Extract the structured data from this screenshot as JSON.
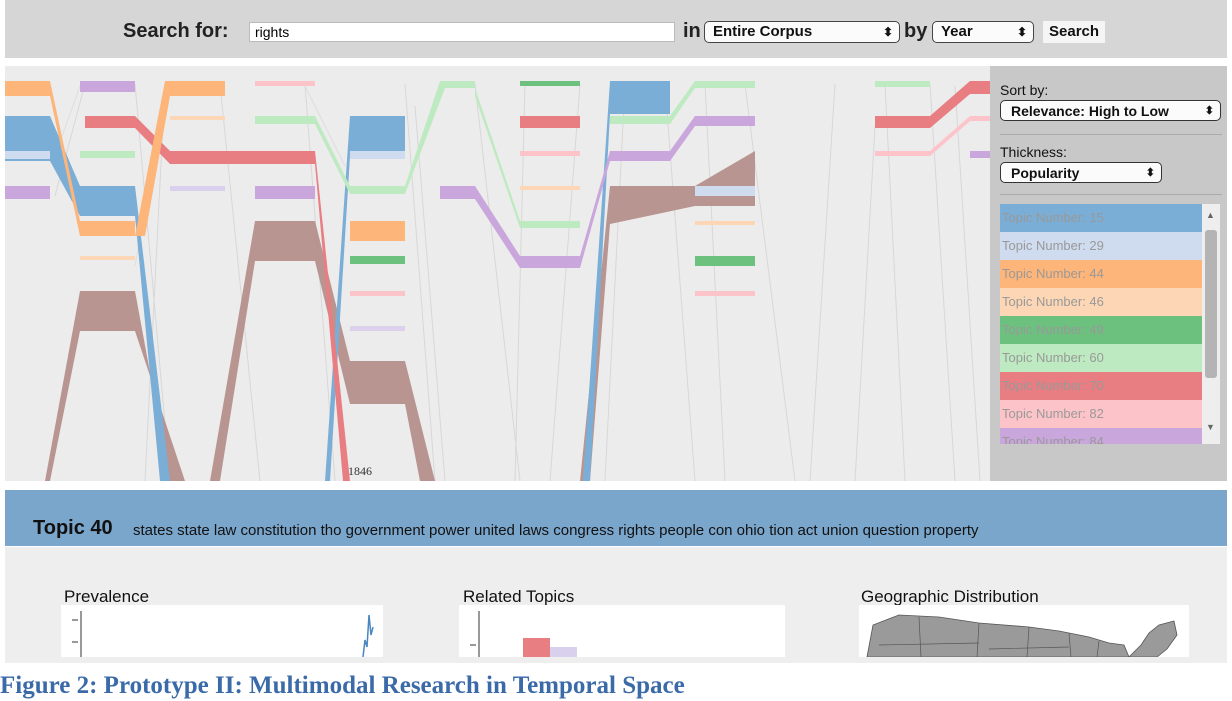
{
  "search": {
    "label": "Search for:",
    "value": "rights",
    "in_word": "in",
    "scope_value": "Entire Corpus",
    "by_word": "by",
    "group_value": "Year",
    "button_label": "Search"
  },
  "viz": {
    "year_label": "1846"
  },
  "panel": {
    "sort_label": "Sort by:",
    "sort_value": "Relevance: High to Low",
    "thickness_label": "Thickness:",
    "thickness_value": "Popularity",
    "topics": [
      {
        "label": "Topic Number: 15",
        "color": "#7baed6"
      },
      {
        "label": "Topic Number: 29",
        "color": "#cfdbef"
      },
      {
        "label": "Topic Number: 44",
        "color": "#fdb57a"
      },
      {
        "label": "Topic Number: 46",
        "color": "#fdd7b5"
      },
      {
        "label": "Topic Number: 49",
        "color": "#6cc17e"
      },
      {
        "label": "Topic Number: 60",
        "color": "#bdeac0"
      },
      {
        "label": "Topic Number: 70",
        "color": "#e87d82"
      },
      {
        "label": "Topic Number: 82",
        "color": "#fcc4c8"
      },
      {
        "label": "Topic Number: 84",
        "color": "#c9a6dc"
      }
    ]
  },
  "topic": {
    "title": "Topic 40",
    "words": "states state law constitution tho government power united laws congress rights people con ohio tion act union question property"
  },
  "sections": {
    "prevalence": "Prevalence",
    "related": "Related Topics",
    "geo": "Geographic Distribution"
  },
  "caption": "Figure 2: Prototype II: Multimodal Research in Temporal Space",
  "colors": {
    "brown": "#b48c88",
    "blue": "#7baed6",
    "light_blue": "#cfdbef",
    "orange": "#fdb57a",
    "light_orange": "#fdd7b5",
    "green": "#6cc17e",
    "light_green": "#bdeac0",
    "red": "#e87d82",
    "pink": "#fcc4c8",
    "purple": "#c9a6dc",
    "caption": "#3b6aa8"
  }
}
